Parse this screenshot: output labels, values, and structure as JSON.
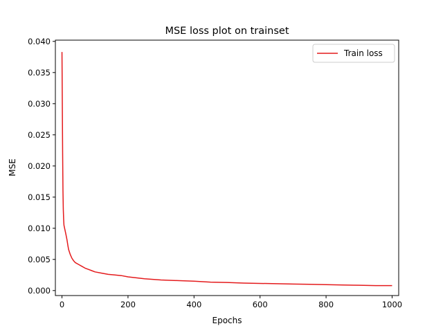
{
  "chart_data": {
    "type": "line",
    "title": "MSE loss plot on trainset",
    "xlabel": "Epochs",
    "ylabel": "MSE",
    "xlim": [
      -20,
      1020
    ],
    "ylim": [
      -0.0008,
      0.0402
    ],
    "xticks": [
      0,
      200,
      400,
      600,
      800,
      1000
    ],
    "xtick_labels": [
      "0",
      "200",
      "400",
      "600",
      "800",
      "1000"
    ],
    "yticks": [
      0.0,
      0.005,
      0.01,
      0.015,
      0.02,
      0.025,
      0.03,
      0.035,
      0.04
    ],
    "ytick_labels": [
      "0.000",
      "0.005",
      "0.010",
      "0.015",
      "0.020",
      "0.025",
      "0.030",
      "0.035",
      "0.040"
    ],
    "grid": false,
    "legend_position": "top-right",
    "series": [
      {
        "name": "Train loss",
        "color": "#e41a1c",
        "x": [
          0,
          1,
          2,
          3,
          4,
          5,
          6,
          8,
          10,
          12,
          15,
          18,
          20,
          25,
          30,
          35,
          40,
          50,
          60,
          70,
          80,
          90,
          100,
          120,
          140,
          160,
          180,
          200,
          250,
          300,
          350,
          400,
          450,
          500,
          550,
          600,
          650,
          700,
          750,
          800,
          850,
          900,
          950,
          1000
        ],
        "values": [
          0.0383,
          0.03,
          0.022,
          0.016,
          0.013,
          0.0115,
          0.0105,
          0.01,
          0.0095,
          0.009,
          0.0082,
          0.0072,
          0.0066,
          0.0058,
          0.0052,
          0.0048,
          0.0045,
          0.0042,
          0.0039,
          0.0036,
          0.0034,
          0.0032,
          0.003,
          0.0028,
          0.0026,
          0.0025,
          0.0024,
          0.0022,
          0.0019,
          0.0017,
          0.0016,
          0.0015,
          0.00135,
          0.0013,
          0.0012,
          0.00115,
          0.0011,
          0.00105,
          0.001,
          0.00095,
          0.0009,
          0.00085,
          0.0008,
          0.0008
        ]
      }
    ]
  }
}
